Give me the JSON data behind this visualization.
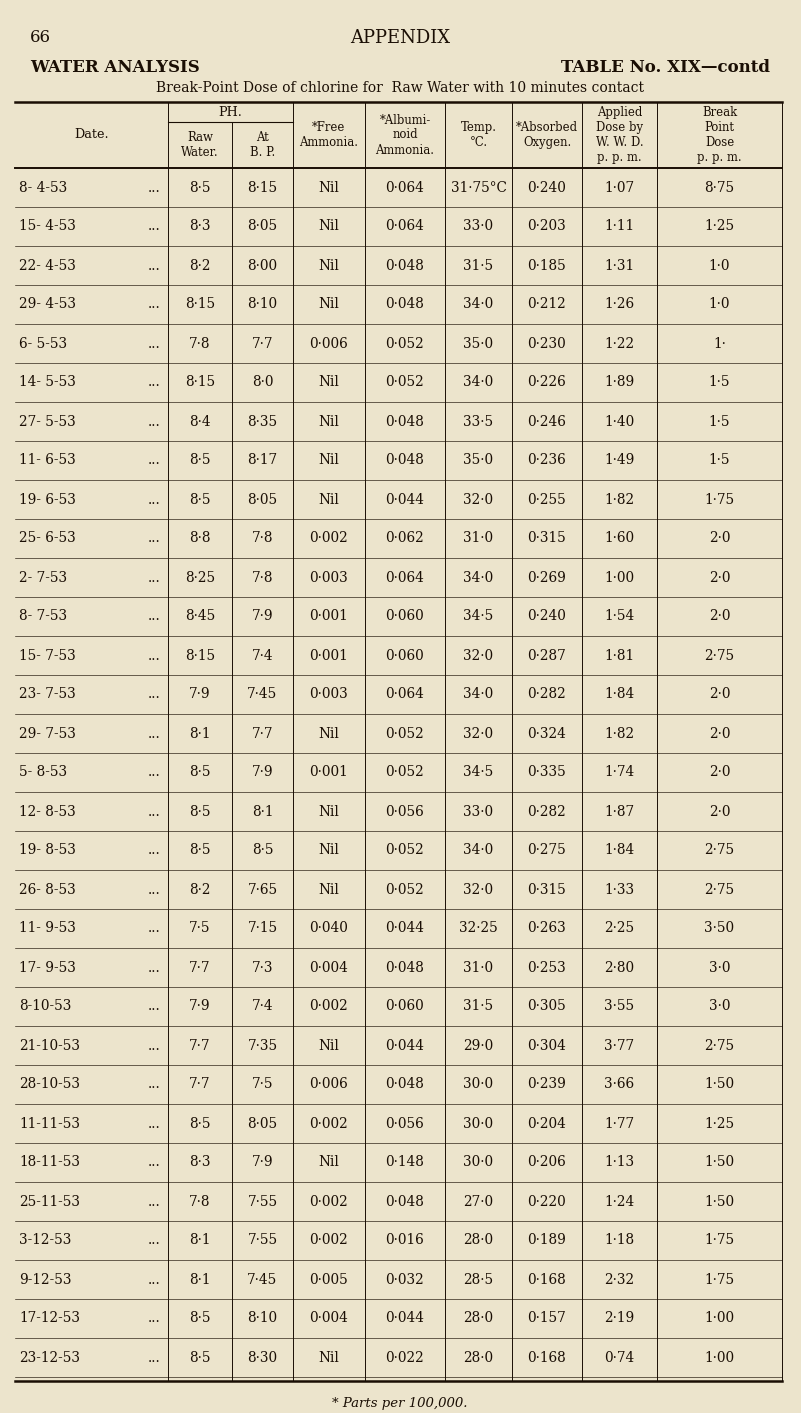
{
  "page_number": "66",
  "appendix_title": "APPENDIX",
  "section_title": "WATER ANALYSIS",
  "table_label": "TABLE No. XIX—contd",
  "subtitle": "Break-Point Dose of chlorine for  Raw Water with 10 minutes contact",
  "footer": "* Parts per 100,000.",
  "bg_color": "#ece4cc",
  "text_color": "#1a0e04",
  "line_color": "#1a0e04",
  "rows": [
    [
      "8- 4-53",
      "8·5",
      "8·15",
      "Nil",
      "0·064",
      "31·75°C",
      "0·240",
      "1·07",
      "8·75"
    ],
    [
      "15- 4-53",
      "8·3",
      "8·05",
      "Nil",
      "0·064",
      "33·0",
      "0·203",
      "1·11",
      "1·25"
    ],
    [
      "22- 4-53",
      "8·2",
      "8·00",
      "Nil",
      "0·048",
      "31·5",
      "0·185",
      "1·31",
      "1·0"
    ],
    [
      "29- 4-53",
      "8·15",
      "8·10",
      "Nil",
      "0·048",
      "34·0",
      "0·212",
      "1·26",
      "1·0"
    ],
    [
      "6- 5-53",
      "7·8",
      "7·7",
      "0·006",
      "0·052",
      "35·0",
      "0·230",
      "1·22",
      "1·"
    ],
    [
      "14- 5-53",
      "8·15",
      "8·0",
      "Nil",
      "0·052",
      "34·0",
      "0·226",
      "1·89",
      "1·5"
    ],
    [
      "27- 5-53",
      "8·4",
      "8·35",
      "Nil",
      "0·048",
      "33·5",
      "0·246",
      "1·40",
      "1·5"
    ],
    [
      "11- 6-53",
      "8·5",
      "8·17",
      "Nil",
      "0·048",
      "35·0",
      "0·236",
      "1·49",
      "1·5"
    ],
    [
      "19- 6-53",
      "8·5",
      "8·05",
      "Nil",
      "0·044",
      "32·0",
      "0·255",
      "1·82",
      "1·75"
    ],
    [
      "25- 6-53",
      "8·8",
      "7·8",
      "0·002",
      "0·062",
      "31·0",
      "0·315",
      "1·60",
      "2·0"
    ],
    [
      "2- 7-53",
      "8·25",
      "7·8",
      "0·003",
      "0·064",
      "34·0",
      "0·269",
      "1·00",
      "2·0"
    ],
    [
      "8- 7-53",
      "8·45",
      "7·9",
      "0·001",
      "0·060",
      "34·5",
      "0·240",
      "1·54",
      "2·0"
    ],
    [
      "15- 7-53",
      "8·15",
      "7·4",
      "0·001",
      "0·060",
      "32·0",
      "0·287",
      "1·81",
      "2·75"
    ],
    [
      "23- 7-53",
      "7·9",
      "7·45",
      "0·003",
      "0·064",
      "34·0",
      "0·282",
      "1·84",
      "2·0"
    ],
    [
      "29- 7-53",
      "8·1",
      "7·7",
      "Nil",
      "0·052",
      "32·0",
      "0·324",
      "1·82",
      "2·0"
    ],
    [
      "5- 8-53",
      "8·5",
      "7·9",
      "0·001",
      "0·052",
      "34·5",
      "0·335",
      "1·74",
      "2·0"
    ],
    [
      "12- 8-53",
      "8·5",
      "8·1",
      "Nil",
      "0·056",
      "33·0",
      "0·282",
      "1·87",
      "2·0"
    ],
    [
      "19- 8-53",
      "8·5",
      "8·5",
      "Nil",
      "0·052",
      "34·0",
      "0·275",
      "1·84",
      "2·75"
    ],
    [
      "26- 8-53",
      "8·2",
      "7·65",
      "Nil",
      "0·052",
      "32·0",
      "0·315",
      "1·33",
      "2·75"
    ],
    [
      "11- 9-53",
      "7·5",
      "7·15",
      "0·040",
      "0·044",
      "32·25",
      "0·263",
      "2·25",
      "3·50"
    ],
    [
      "17- 9-53",
      "7·7",
      "7·3",
      "0·004",
      "0·048",
      "31·0",
      "0·253",
      "2·80",
      "3·0"
    ],
    [
      "8-10-53",
      "7·9",
      "7·4",
      "0·002",
      "0·060",
      "31·5",
      "0·305",
      "3·55",
      "3·0"
    ],
    [
      "21-10-53",
      "7·7",
      "7·35",
      "Nil",
      "0·044",
      "29·0",
      "0·304",
      "3·77",
      "2·75"
    ],
    [
      "28-10-53",
      "7·7",
      "7·5",
      "0·006",
      "0·048",
      "30·0",
      "0·239",
      "3·66",
      "1·50"
    ],
    [
      "11-11-53",
      "8·5",
      "8·05",
      "0·002",
      "0·056",
      "30·0",
      "0·204",
      "1·77",
      "1·25"
    ],
    [
      "18-11-53",
      "8·3",
      "7·9",
      "Nil",
      "0·148",
      "30·0",
      "0·206",
      "1·13",
      "1·50"
    ],
    [
      "25-11-53",
      "7·8",
      "7·55",
      "0·002",
      "0·048",
      "27·0",
      "0·220",
      "1·24",
      "1·50"
    ],
    [
      "3-12-53",
      "8·1",
      "7·55",
      "0·002",
      "0·016",
      "28·0",
      "0·189",
      "1·18",
      "1·75"
    ],
    [
      "9-12-53",
      "8·1",
      "7·45",
      "0·005",
      "0·032",
      "28·5",
      "0·168",
      "2·32",
      "1·75"
    ],
    [
      "17-12-53",
      "8·5",
      "8·10",
      "0·004",
      "0·044",
      "28·0",
      "0·157",
      "2·19",
      "1·00"
    ],
    [
      "23-12-53",
      "8·5",
      "8·30",
      "Nil",
      "0·022",
      "28·0",
      "0·168",
      "0·74",
      "1·00"
    ]
  ]
}
